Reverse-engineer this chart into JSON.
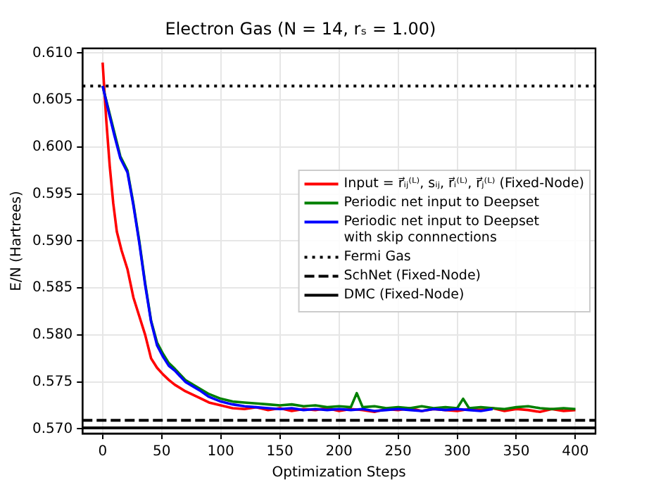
{
  "chart_data": {
    "type": "line",
    "title": "Electron Gas (N = 14, rₛ = 1.00)",
    "xlabel": "Optimization Steps",
    "ylabel": "E/N (Hartrees)",
    "xlim": [
      -17,
      417
    ],
    "ylim": [
      0.5695,
      0.6105
    ],
    "xticks": [
      0,
      50,
      100,
      150,
      200,
      250,
      300,
      350,
      400
    ],
    "yticks": [
      {
        "value": 0.57,
        "label": "0.570"
      },
      {
        "value": 0.575,
        "label": "0.575"
      },
      {
        "value": 0.58,
        "label": "0.580"
      },
      {
        "value": 0.585,
        "label": "0.585"
      },
      {
        "value": 0.59,
        "label": "0.590"
      },
      {
        "value": 0.595,
        "label": "0.595"
      },
      {
        "value": 0.6,
        "label": "0.600"
      },
      {
        "value": 0.605,
        "label": "0.605"
      },
      {
        "value": 0.61,
        "label": "0.610"
      }
    ],
    "grid": true,
    "legend": "right",
    "line_style": "solid",
    "marker": "none",
    "series": [
      {
        "name": "Input = r⃗ᵢⱼ⁽ᴸ⁾, sᵢⱼ, r⃗ᵢ⁽ᴸ⁾, r⃗ⱼ⁽ᴸ⁾ (Fixed-Node)",
        "color": "#ff0000",
        "x": [
          0,
          3,
          6,
          9,
          12,
          16,
          21,
          26,
          31,
          36,
          41,
          46,
          51,
          56,
          61,
          70,
          82,
          90,
          100,
          110,
          120,
          130,
          140,
          150,
          160,
          170,
          180,
          190,
          200,
          210,
          220,
          230,
          240,
          250,
          260,
          270,
          280,
          290,
          300,
          310,
          320,
          330,
          340,
          350,
          360,
          370,
          380,
          390,
          400
        ],
        "values": [
          0.609,
          0.603,
          0.598,
          0.594,
          0.591,
          0.589,
          0.587,
          0.584,
          0.582,
          0.58,
          0.5775,
          0.5765,
          0.5758,
          0.5752,
          0.5747,
          0.574,
          0.5733,
          0.5728,
          0.5725,
          0.5722,
          0.5721,
          0.5723,
          0.572,
          0.5722,
          0.5719,
          0.5721,
          0.572,
          0.5722,
          0.5719,
          0.5721,
          0.572,
          0.5718,
          0.5721,
          0.572,
          0.5722,
          0.5719,
          0.5721,
          0.572,
          0.5719,
          0.5721,
          0.572,
          0.5722,
          0.5719,
          0.5721,
          0.572,
          0.5718,
          0.5721,
          0.5719,
          0.572
        ]
      },
      {
        "name": "Periodic net input to Deepset",
        "color": "#008000",
        "x": [
          0,
          5,
          10,
          15,
          21,
          26,
          31,
          36,
          41,
          46,
          51,
          56,
          61,
          70,
          82,
          90,
          100,
          110,
          120,
          130,
          140,
          150,
          160,
          170,
          180,
          190,
          200,
          210,
          215,
          220,
          230,
          240,
          250,
          260,
          270,
          280,
          290,
          300,
          305,
          310,
          320,
          330,
          340,
          350,
          360,
          370,
          380,
          390,
          400
        ],
        "values": [
          0.6065,
          0.604,
          0.6015,
          0.599,
          0.5975,
          0.594,
          0.59,
          0.5855,
          0.5815,
          0.5792,
          0.578,
          0.577,
          0.5764,
          0.5752,
          0.5743,
          0.5737,
          0.5732,
          0.5729,
          0.5728,
          0.5727,
          0.5726,
          0.5725,
          0.5726,
          0.5724,
          0.5725,
          0.5723,
          0.5724,
          0.5723,
          0.5738,
          0.5723,
          0.5724,
          0.5722,
          0.5723,
          0.5722,
          0.5724,
          0.5722,
          0.5723,
          0.5722,
          0.5732,
          0.5722,
          0.5723,
          0.5722,
          0.5721,
          0.5723,
          0.5724,
          0.5722,
          0.5721,
          0.5722,
          0.5721
        ]
      },
      {
        "name": "Periodic net input to Deepset\nwith skip connnections",
        "color": "#0000ff",
        "x": [
          0,
          5,
          10,
          15,
          21,
          26,
          31,
          36,
          41,
          46,
          51,
          56,
          61,
          70,
          82,
          90,
          100,
          110,
          120,
          130,
          140,
          150,
          160,
          170,
          180,
          190,
          200,
          210,
          220,
          230,
          240,
          250,
          260,
          270,
          280,
          290,
          300,
          310,
          320,
          330
        ],
        "values": [
          0.6065,
          0.6038,
          0.6012,
          0.5988,
          0.5973,
          0.5938,
          0.5898,
          0.5853,
          0.5814,
          0.5789,
          0.5777,
          0.5767,
          0.5762,
          0.575,
          0.5741,
          0.5734,
          0.5729,
          0.5726,
          0.5724,
          0.5723,
          0.5722,
          0.5721,
          0.5722,
          0.572,
          0.5721,
          0.572,
          0.5721,
          0.572,
          0.5721,
          0.5719,
          0.572,
          0.5721,
          0.572,
          0.5719,
          0.5721,
          0.572,
          0.5721,
          0.572,
          0.5719,
          0.5721
        ]
      }
    ],
    "ref_lines": [
      {
        "axis": "y",
        "value": 0.6065,
        "label": "Fermi Gas",
        "color": "#000000",
        "line_style": "dotted"
      },
      {
        "axis": "y",
        "value": 0.5709,
        "label": "SchNet (Fixed-Node)",
        "color": "#000000",
        "line_style": "dashed"
      },
      {
        "axis": "y",
        "value": 0.5701,
        "label": "DMC (Fixed-Node)",
        "color": "#000000",
        "line_style": "solid"
      }
    ]
  }
}
